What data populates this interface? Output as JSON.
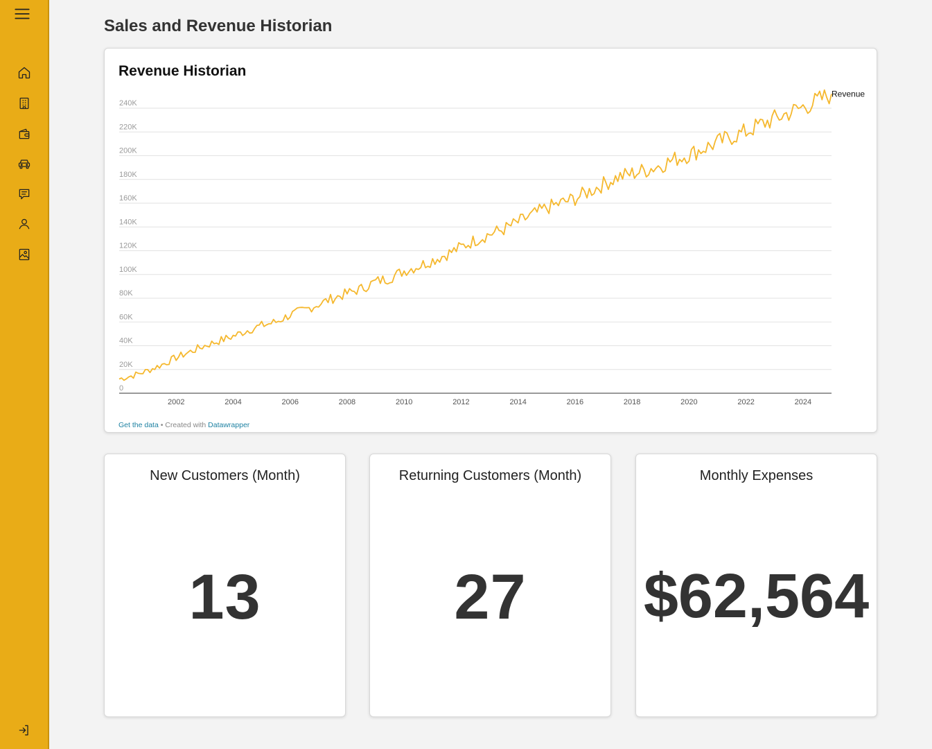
{
  "page": {
    "title": "Sales and Revenue Historian"
  },
  "sidebar": {
    "menu_icon": "hamburger-icon",
    "items": [
      {
        "id": "home",
        "icon": "home-icon"
      },
      {
        "id": "buildings",
        "icon": "building-icon"
      },
      {
        "id": "wallet",
        "icon": "wallet-icon"
      },
      {
        "id": "vehicles",
        "icon": "car-icon"
      },
      {
        "id": "messages",
        "icon": "message-icon"
      },
      {
        "id": "account",
        "icon": "user-icon"
      },
      {
        "id": "images",
        "icon": "image-icon"
      }
    ],
    "logout_icon": "logout-icon",
    "color": "#e9ac17"
  },
  "chart_card": {
    "title": "Revenue Historian",
    "footer": {
      "link1": "Get the data",
      "sep": " • Created with ",
      "link2": "Datawrapper"
    }
  },
  "chart_data": {
    "type": "line",
    "title": "Revenue Historian",
    "xlabel": "",
    "ylabel": "",
    "series": [
      {
        "name": "Revenue",
        "color": "#f5b82e",
        "points": [
          [
            "2000-01",
            12000
          ],
          [
            "2000-07",
            15000
          ],
          [
            "2001-01",
            19000
          ],
          [
            "2001-07",
            24000
          ],
          [
            "2002-01",
            30000
          ],
          [
            "2002-07",
            35000
          ],
          [
            "2003-01",
            40000
          ],
          [
            "2003-07",
            44000
          ],
          [
            "2004-01",
            48000
          ],
          [
            "2004-07",
            53000
          ],
          [
            "2005-01",
            57000
          ],
          [
            "2005-07",
            60000
          ],
          [
            "2006-01",
            66000
          ],
          [
            "2006-07",
            70000
          ],
          [
            "2007-01",
            75000
          ],
          [
            "2007-07",
            80000
          ],
          [
            "2008-01",
            84000
          ],
          [
            "2008-07",
            88000
          ],
          [
            "2009-01",
            94000
          ],
          [
            "2009-07",
            97000
          ],
          [
            "2010-01",
            103000
          ],
          [
            "2010-07",
            107000
          ],
          [
            "2011-01",
            112000
          ],
          [
            "2011-07",
            117000
          ],
          [
            "2012-01",
            123000
          ],
          [
            "2012-07",
            129000
          ],
          [
            "2013-01",
            134000
          ],
          [
            "2013-07",
            138000
          ],
          [
            "2014-01",
            144000
          ],
          [
            "2014-07",
            150000
          ],
          [
            "2015-01",
            156000
          ],
          [
            "2015-07",
            160000
          ],
          [
            "2016-01",
            164000
          ],
          [
            "2016-07",
            170000
          ],
          [
            "2017-01",
            176000
          ],
          [
            "2017-07",
            182000
          ],
          [
            "2018-01",
            185000
          ],
          [
            "2018-07",
            188000
          ],
          [
            "2019-01",
            192000
          ],
          [
            "2019-07",
            197000
          ],
          [
            "2020-01",
            201000
          ],
          [
            "2020-07",
            206000
          ],
          [
            "2021-01",
            211000
          ],
          [
            "2021-07",
            216000
          ],
          [
            "2022-01",
            220000
          ],
          [
            "2022-07",
            226000
          ],
          [
            "2023-01",
            231000
          ],
          [
            "2023-07",
            236000
          ],
          [
            "2024-01",
            241000
          ],
          [
            "2024-07",
            246000
          ],
          [
            "2025-01",
            252000
          ]
        ]
      }
    ],
    "x_ticks": [
      "2002",
      "2004",
      "2006",
      "2008",
      "2010",
      "2012",
      "2014",
      "2016",
      "2018",
      "2020",
      "2022",
      "2024"
    ],
    "y_ticks": [
      "0",
      "20K",
      "40K",
      "60K",
      "80K",
      "100K",
      "120K",
      "140K",
      "160K",
      "180K",
      "200K",
      "220K",
      "240K"
    ],
    "xlim": [
      "2000-01",
      "2025-01"
    ],
    "ylim": [
      0,
      240000
    ],
    "grid": true,
    "legend": "end-of-line label"
  },
  "kpis": [
    {
      "label": "New Customers (Month)",
      "value": "13"
    },
    {
      "label": "Returning Customers (Month)",
      "value": "27"
    },
    {
      "label": "Monthly Expenses",
      "value": "$62,564"
    }
  ]
}
